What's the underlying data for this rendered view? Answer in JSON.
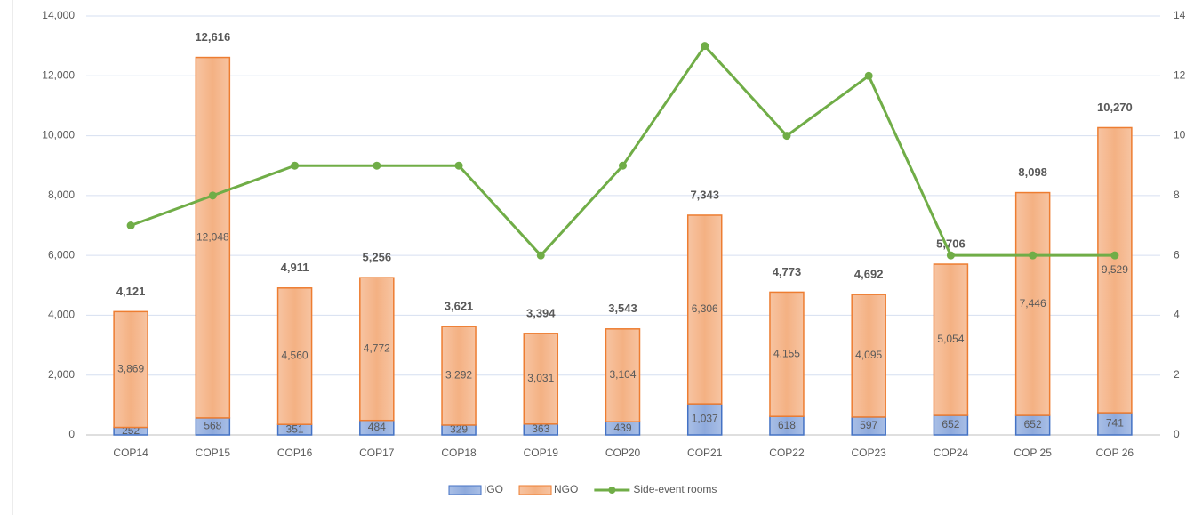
{
  "chart_data": {
    "type": "bar",
    "stacked": true,
    "categories": [
      "COP14",
      "COP15",
      "COP16",
      "COP17",
      "COP18",
      "COP19",
      "COP20",
      "COP21",
      "COP22",
      "COP23",
      "COP24",
      "COP 25",
      "COP 26"
    ],
    "series": [
      {
        "name": "IGO",
        "color": "#8faadc",
        "values": [
          252,
          568,
          351,
          484,
          329,
          363,
          439,
          1037,
          618,
          597,
          652,
          652,
          741
        ],
        "value_labels": [
          "252",
          "568",
          "351",
          "484",
          "329",
          "363",
          "439",
          "1,037",
          "618",
          "597",
          "652",
          "652",
          "741"
        ]
      },
      {
        "name": "NGO",
        "color": "#f4b183",
        "values": [
          3869,
          12048,
          4560,
          4772,
          3292,
          3031,
          3104,
          6306,
          4155,
          4095,
          5054,
          7446,
          9529
        ],
        "value_labels": [
          "3,869",
          "12,048",
          "4,560",
          "4,772",
          "3,292",
          "3,031",
          "3,104",
          "6,306",
          "4,155",
          "4,095",
          "5,054",
          "7,446",
          "9,529"
        ]
      },
      {
        "name": "Side-event rooms",
        "color": "#70ad47",
        "type": "line",
        "axis": "y2",
        "values": [
          7,
          8,
          9,
          9,
          9,
          6,
          9,
          13,
          10,
          12,
          6,
          6,
          6
        ]
      }
    ],
    "totals": {
      "values": [
        4121,
        12616,
        4911,
        5256,
        3621,
        3394,
        3543,
        7343,
        4773,
        4692,
        5706,
        8098,
        10270
      ],
      "value_labels": [
        "4,121",
        "12,616",
        "4,911",
        "5,256",
        "3,621",
        "3,394",
        "3,543",
        "7,343",
        "4,773",
        "4,692",
        "5,706",
        "8,098",
        "10,270"
      ]
    },
    "ylim": [
      0,
      14000
    ],
    "yticks": [
      0,
      {
        "value": 2000,
        "label": "2,000"
      },
      {
        "value": 4000,
        "label": "4,000"
      },
      {
        "value": 6000,
        "label": "6,000"
      },
      {
        "value": 8000,
        "label": "8,000"
      },
      {
        "value": 10000,
        "label": "10,000"
      },
      {
        "value": 12000,
        "label": "12,000"
      },
      {
        "value": 14000,
        "label": "14,000"
      }
    ],
    "y2lim": [
      0,
      14
    ],
    "y2ticks": [
      0,
      2,
      4,
      6,
      8,
      10,
      12,
      14
    ],
    "grid": true,
    "legend": "bottom"
  }
}
